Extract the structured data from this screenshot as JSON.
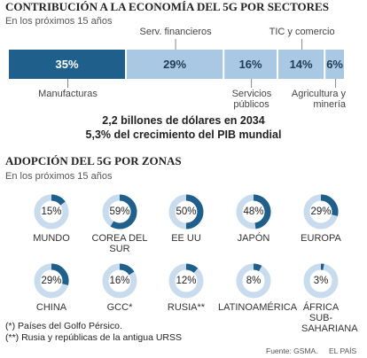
{
  "chart_data": [
    {
      "type": "stacked-bar",
      "title": "CONTRIBUCIÓN A LA ECONOMÍA DEL 5G POR SECTORES",
      "subtitle": "En los próximos 15 años",
      "series": [
        {
          "name": "Manufacturas",
          "color": "#1f5f8c",
          "values": [
            35
          ],
          "value_labels": [
            "35%"
          ]
        },
        {
          "name": "Serv. financieros",
          "color": "#a9c8e4",
          "values": [
            29
          ],
          "value_labels": [
            "29%"
          ]
        },
        {
          "name": "Servicios públicos",
          "color": "#a9c8e4",
          "values": [
            16
          ],
          "value_labels": [
            "16%"
          ]
        },
        {
          "name": "TIC y comercio",
          "color": "#a9c8e4",
          "values": [
            14
          ],
          "value_labels": [
            "14%"
          ]
        },
        {
          "name": "Agricultura y minería",
          "color": "#a9c8e4",
          "values": [
            6
          ],
          "value_labels": [
            "6%"
          ]
        }
      ],
      "annotations": [
        "2,2 billones de dólares en 2034",
        "5,3% del crecimiento del PIB mundial"
      ]
    },
    {
      "type": "donut",
      "title": "ADOPCIÓN DEL 5G POR ZONAS",
      "subtitle": "En los próximos 15 años",
      "categories": [
        "MUNDO",
        "COREA DEL SUR",
        "EE UU",
        "JAPÓN",
        "EUROPA",
        "CHINA",
        "GCC*",
        "RUSIA**",
        "LATINOAMÉRICA",
        "ÁFRICA SUB-SAHARIANA"
      ],
      "values": [
        15,
        59,
        50,
        48,
        29,
        29,
        16,
        12,
        8,
        3
      ],
      "value_labels": [
        "15%",
        "59%",
        "50%",
        "48%",
        "29%",
        "29%",
        "16%",
        "12%",
        "8%",
        "3%"
      ],
      "ylim": [
        0,
        100
      ],
      "color": "#1f5f8c",
      "track_color": "#c9dcee",
      "notes": [
        "(*) Países del Golfo Pérsico.",
        "(**) Rusia y repúblicas de la antigua URSS"
      ]
    }
  ],
  "source": "Fuente: GSMA.",
  "publisher": "EL PAÍS"
}
